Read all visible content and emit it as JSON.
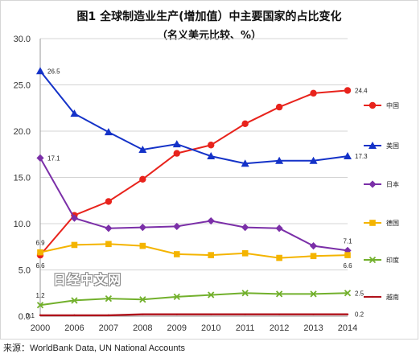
{
  "chart_data": {
    "type": "line",
    "title": "图1 全球制造业生产(增加值）中主要国家的占比变化",
    "subtitle": "（名义美元比较、%）",
    "xlabel": "",
    "ylabel": "",
    "categories": [
      "2000",
      "2006",
      "2007",
      "2008",
      "2009",
      "2010",
      "2011",
      "2012",
      "2013",
      "2014"
    ],
    "ylim": [
      0,
      30
    ],
    "y_ticks": [
      "0.0",
      "5.0",
      "10.0",
      "15.0",
      "20.0",
      "25.0",
      "30.0"
    ],
    "grid": true,
    "legend_position": "right",
    "series": [
      {
        "name": "中国",
        "color": "#e8231c",
        "marker": "circle",
        "values": [
          6.6,
          10.9,
          12.4,
          14.8,
          17.6,
          18.5,
          20.8,
          22.6,
          24.1,
          24.4
        ],
        "labels": [
          {
            "index": 0,
            "text": "6.6",
            "pos": "below"
          },
          {
            "index": 9,
            "text": "24.4",
            "pos": "right"
          }
        ]
      },
      {
        "name": "美国",
        "color": "#1432c8",
        "marker": "triangle",
        "values": [
          26.5,
          21.9,
          19.9,
          18.0,
          18.6,
          17.3,
          16.5,
          16.8,
          16.8,
          17.3
        ],
        "labels": [
          {
            "index": 0,
            "text": "26.5",
            "pos": "right"
          },
          {
            "index": 9,
            "text": "17.3",
            "pos": "right"
          }
        ]
      },
      {
        "name": "日本",
        "color": "#7b2fa8",
        "marker": "diamond",
        "values": [
          17.1,
          10.6,
          9.5,
          9.6,
          9.7,
          10.3,
          9.6,
          9.5,
          7.6,
          7.1
        ],
        "labels": [
          {
            "index": 0,
            "text": "17.1",
            "pos": "right"
          },
          {
            "index": 9,
            "text": "7.1",
            "pos": "above"
          }
        ]
      },
      {
        "name": "德国",
        "color": "#f4b400",
        "marker": "square",
        "values": [
          6.9,
          7.7,
          7.8,
          7.6,
          6.7,
          6.6,
          6.8,
          6.3,
          6.5,
          6.6
        ],
        "labels": [
          {
            "index": 0,
            "text": "6.9",
            "pos": "above"
          },
          {
            "index": 9,
            "text": "6.6",
            "pos": "below"
          }
        ]
      },
      {
        "name": "印度",
        "color": "#72b02c",
        "marker": "x",
        "values": [
          1.2,
          1.7,
          1.9,
          1.8,
          2.1,
          2.3,
          2.5,
          2.4,
          2.4,
          2.5
        ],
        "labels": [
          {
            "index": 0,
            "text": "1.2",
            "pos": "above"
          },
          {
            "index": 9,
            "text": "2.5",
            "pos": "right"
          }
        ]
      },
      {
        "name": "越南",
        "color": "#b0121b",
        "marker": "line",
        "values": [
          0.1,
          0.1,
          0.1,
          0.2,
          0.2,
          0.2,
          0.2,
          0.2,
          0.2,
          0.2
        ],
        "labels": [
          {
            "index": 0,
            "text": "0.1",
            "pos": "left"
          },
          {
            "index": 9,
            "text": "0.2",
            "pos": "right"
          }
        ]
      }
    ]
  },
  "watermark": "日经中文网",
  "source_note": "来源：WorldBank Data, UN National Accounts"
}
